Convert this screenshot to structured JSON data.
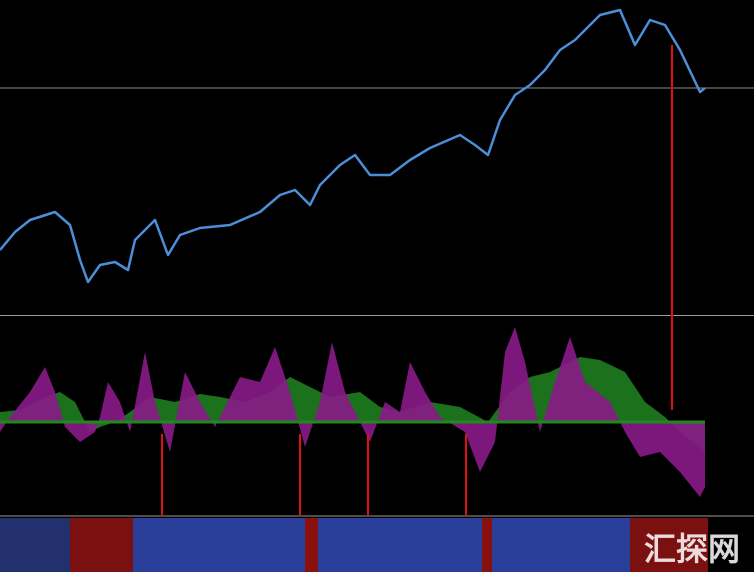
{
  "chart_data": [
    {
      "type": "line",
      "xlim": [
        0,
        754
      ],
      "ylim": [
        0,
        315
      ],
      "x": [
        0,
        15,
        30,
        55,
        70,
        80,
        88,
        100,
        115,
        128,
        135,
        155,
        168,
        180,
        200,
        230,
        260,
        280,
        295,
        310,
        320,
        340,
        355,
        370,
        390,
        410,
        430,
        460,
        475,
        488,
        500,
        515,
        530,
        545,
        560,
        575,
        600,
        620,
        635,
        650,
        665,
        680,
        700,
        705
      ],
      "series": [
        {
          "color": "#4a8fd8",
          "values": [
            65,
            83,
            95,
            103,
            90,
            55,
            33,
            50,
            53,
            45,
            75,
            95,
            60,
            80,
            87,
            90,
            103,
            120,
            125,
            110,
            130,
            150,
            160,
            140,
            140,
            155,
            167,
            180,
            170,
            160,
            195,
            220,
            230,
            245,
            265,
            275,
            300,
            305,
            270,
            295,
            290,
            265,
            223,
            227
          ]
        }
      ],
      "level": 227,
      "level_color": "#8a8a8a"
    },
    {
      "type": "area",
      "xlim": [
        0,
        754
      ],
      "ylim": [
        -93,
        104
      ],
      "zero_color": "#1e8a1e",
      "series": [
        {
          "color": "#1f7d1f",
          "x": [
            0,
            20,
            45,
            60,
            75,
            90,
            100,
            115,
            130,
            150,
            175,
            200,
            220,
            245,
            270,
            290,
            310,
            330,
            360,
            380,
            400,
            430,
            460,
            488,
            510,
            530,
            550,
            580,
            600,
            625,
            645,
            665,
            680,
            705
          ],
          "values": [
            10,
            12,
            25,
            30,
            20,
            -10,
            -5,
            0,
            10,
            25,
            20,
            28,
            25,
            20,
            30,
            45,
            35,
            25,
            30,
            15,
            10,
            20,
            15,
            0,
            30,
            45,
            50,
            65,
            62,
            50,
            20,
            5,
            -10,
            -30
          ]
        },
        {
          "color": "#8a1a8a",
          "x": [
            0,
            10,
            30,
            45,
            55,
            65,
            80,
            95,
            100,
            108,
            120,
            130,
            145,
            155,
            170,
            185,
            200,
            215,
            240,
            260,
            275,
            290,
            305,
            320,
            332,
            345,
            370,
            385,
            400,
            410,
            425,
            440,
            465,
            480,
            495,
            505,
            515,
            525,
            540,
            555,
            570,
            585,
            610,
            625,
            640,
            660,
            680,
            700,
            705
          ],
          "values": [
            -10,
            5,
            30,
            55,
            30,
            -5,
            -20,
            -10,
            5,
            40,
            20,
            -10,
            70,
            20,
            -30,
            50,
            20,
            -5,
            45,
            40,
            75,
            30,
            -25,
            20,
            80,
            30,
            -20,
            20,
            10,
            60,
            30,
            5,
            -10,
            -50,
            -20,
            70,
            95,
            60,
            -10,
            40,
            85,
            40,
            20,
            -10,
            -35,
            -30,
            -50,
            -75,
            -65
          ]
        }
      ],
      "signals": {
        "x": [
          162,
          300,
          368,
          466,
          672
        ],
        "directions": [
          "up",
          "up",
          "up",
          "up",
          "down"
        ],
        "color": "#e01010"
      }
    },
    {
      "type": "strip",
      "xlim": [
        0,
        754
      ],
      "starts": [
        0,
        70,
        133,
        305,
        318,
        482,
        492,
        630
      ],
      "ends": [
        70,
        133,
        305,
        318,
        482,
        492,
        630,
        708
      ],
      "colors": [
        "#22306e",
        "#7a1010",
        "#2a3f9a",
        "#8a1010",
        "#2a3f9a",
        "#8a1010",
        "#2a3f9a",
        "#7a1010"
      ]
    },
    {
      "type": "watermark",
      "text": "汇探网"
    }
  ]
}
